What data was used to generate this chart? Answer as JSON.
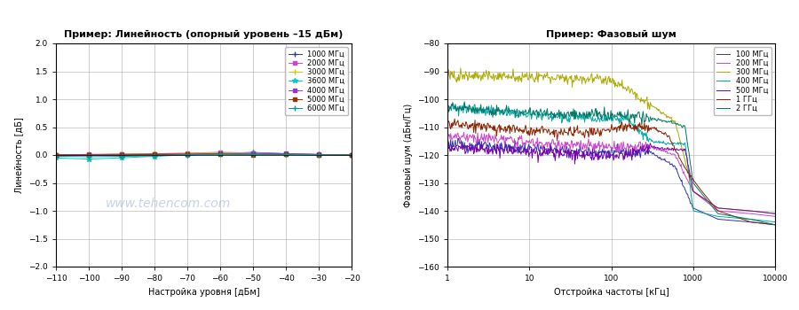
{
  "left_title": "Пример: Линейность (опорный уровень –15 дБм)",
  "left_xlabel": "Настройка уровня [дБм]",
  "left_ylabel": "Линейность [дБ]",
  "left_xlim": [
    -110,
    -20
  ],
  "left_ylim": [
    -2,
    2
  ],
  "left_xticks": [
    -110,
    -100,
    -90,
    -80,
    -70,
    -60,
    -50,
    -40,
    -30,
    -20
  ],
  "left_yticks": [
    -2,
    -1.5,
    -1,
    -0.5,
    0,
    0.5,
    1,
    1.5,
    2
  ],
  "left_series": [
    {
      "label": "1000 МГц",
      "color": "#3333aa",
      "marker": "+",
      "offsets": [
        0.0,
        0.0,
        0.0,
        0.0,
        0.0,
        0.03,
        0.04,
        0.02,
        0.01,
        0.0
      ]
    },
    {
      "label": "2000 МГц",
      "color": "#cc44cc",
      "marker": "s",
      "offsets": [
        0.0,
        0.0,
        0.02,
        0.03,
        0.04,
        0.05,
        0.04,
        0.02,
        0.01,
        0.0
      ]
    },
    {
      "label": "3000 МГц",
      "color": "#cccc00",
      "marker": "+",
      "offsets": [
        0.0,
        0.01,
        0.02,
        0.03,
        0.03,
        0.04,
        0.04,
        0.02,
        0.01,
        0.0
      ]
    },
    {
      "label": "3600 МГц",
      "color": "#00cccc",
      "marker": "*",
      "offsets": [
        -0.05,
        -0.08,
        -0.05,
        -0.02,
        0.0,
        0.02,
        0.03,
        0.02,
        0.01,
        0.0
      ]
    },
    {
      "label": "4000 МГц",
      "color": "#9933cc",
      "marker": "s",
      "offsets": [
        0.0,
        0.01,
        0.01,
        0.02,
        0.02,
        0.03,
        0.03,
        0.02,
        0.01,
        0.0
      ]
    },
    {
      "label": "5000 МГц",
      "color": "#993300",
      "marker": "s",
      "offsets": [
        0.0,
        0.0,
        0.0,
        0.01,
        0.01,
        0.01,
        0.01,
        0.01,
        0.0,
        0.0
      ]
    },
    {
      "label": "6000 МГц",
      "color": "#009999",
      "marker": "+",
      "offsets": [
        -0.02,
        -0.03,
        -0.02,
        -0.01,
        0.0,
        0.01,
        0.01,
        0.01,
        0.0,
        0.0
      ]
    }
  ],
  "watermark": "www.tehencom.com",
  "right_title": "Пример: Фазовый шум",
  "right_xlabel": "Отстройка частоты [кГц]",
  "right_ylabel": "Фазовый шум (дБн/Гц)",
  "right_xlim": [
    1,
    10000
  ],
  "right_ylim": [
    -160,
    -80
  ],
  "right_yticks": [
    -160,
    -150,
    -140,
    -130,
    -120,
    -110,
    -100,
    -90,
    -80
  ],
  "right_series": [
    {
      "label": "100 МГц",
      "color": "#3333aa",
      "x": [
        1,
        3,
        7,
        15,
        30,
        70,
        150,
        300,
        600,
        1000,
        2000,
        5000,
        10000
      ],
      "y": [
        -116,
        -117,
        -117.5,
        -118,
        -118.5,
        -119,
        -119,
        -119,
        -124,
        -139,
        -143,
        -144,
        -145
      ]
    },
    {
      "label": "200 МГц",
      "color": "#cc44cc",
      "x": [
        1,
        3,
        7,
        15,
        30,
        70,
        150,
        300,
        600,
        1000,
        2000,
        5000,
        10000
      ],
      "y": [
        -113,
        -114,
        -115,
        -116,
        -116.5,
        -117,
        -117,
        -117,
        -120,
        -133,
        -140,
        -141,
        -142
      ]
    },
    {
      "label": "300 МГц",
      "color": "#aaaa00",
      "x": [
        1,
        3,
        7,
        15,
        30,
        70,
        100,
        150,
        300,
        600,
        1000,
        2000,
        5000,
        10000
      ],
      "y": [
        -91,
        -91.5,
        -92,
        -92,
        -92.5,
        -92.5,
        -93,
        -96,
        -102,
        -108,
        -133,
        -139,
        -140,
        -141
      ]
    },
    {
      "label": "400 МГц",
      "color": "#00aaaa",
      "x": [
        1,
        3,
        7,
        15,
        30,
        70,
        150,
        300,
        500,
        800,
        1000,
        2000,
        5000,
        10000
      ],
      "y": [
        -103,
        -104,
        -105,
        -106,
        -106.5,
        -107,
        -107,
        -115,
        -116,
        -116,
        -140,
        -142,
        -143,
        -144
      ]
    },
    {
      "label": "500 МГц",
      "color": "#7700aa",
      "x": [
        1,
        3,
        7,
        15,
        30,
        70,
        150,
        300,
        500,
        800,
        1000,
        2000,
        5000,
        10000
      ],
      "y": [
        -117,
        -118,
        -118.5,
        -119,
        -119.5,
        -120,
        -120,
        -117,
        -118,
        -118,
        -133,
        -139,
        -140,
        -141
      ]
    },
    {
      "label": "1 ГГц",
      "color": "#882200",
      "x": [
        1,
        3,
        7,
        15,
        30,
        70,
        100,
        150,
        300,
        500,
        800,
        1200,
        2000,
        5000,
        10000
      ],
      "y": [
        -109,
        -110,
        -111,
        -111.5,
        -112,
        -112,
        -111,
        -110,
        -110,
        -113,
        -125,
        -132,
        -140,
        -144,
        -145
      ]
    },
    {
      "label": "2 ГГц",
      "color": "#007766",
      "x": [
        1,
        3,
        7,
        15,
        30,
        70,
        150,
        300,
        500,
        800,
        1000,
        2000,
        5000,
        10000
      ],
      "y": [
        -103,
        -104,
        -104.5,
        -105,
        -105.5,
        -105.5,
        -106,
        -107,
        -108,
        -110,
        -130,
        -141,
        -143,
        -145
      ]
    }
  ]
}
